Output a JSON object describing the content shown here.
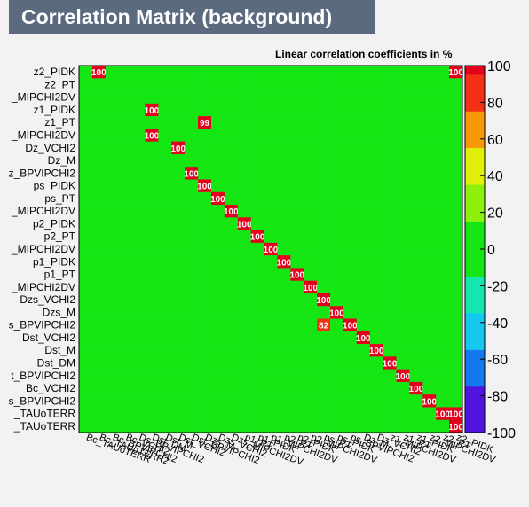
{
  "chart_data": {
    "type": "heatmap",
    "title": "Correlation Matrix (background)",
    "subtitle": "Linear correlation coefficients in %",
    "variables": [
      "Bc_TAUoTERR",
      "Bc_TAUoTERR2",
      "Bc_BPVIPCHI2",
      "Bc_VCHI2",
      "Ds_BPVIPCHI2",
      "Dst_DM",
      "Dst_M",
      "Dst_VCHI2",
      "Dst_BPVIPCHI2",
      "Dzs_M",
      "Dzs_VCHI2",
      "Dzs_MIPCHI2DV",
      "p1_PT",
      "p1_PIDK",
      "p1_MIPCHI2DV",
      "p2_PT",
      "p2_PIDK",
      "p2_MIPCHI2DV",
      "ps_PT",
      "ps_PIDK",
      "ps_BPVIPCHI2",
      "Dz_M",
      "Dz_VCHI2",
      "z1_MIPCHI2DV",
      "z1_PT",
      "z1_PIDK",
      "z2_MIPCHI2DV",
      "z2_PT",
      "z2_PIDK"
    ],
    "row_labels_visible": [
      "z2_PIDK",
      "z2_PT",
      "_MIPCHI2DV",
      "z1_PIDK",
      "z1_PT",
      "_MIPCHI2DV",
      "Dz_VCHI2",
      "Dz_M",
      "z_BPVIPCHI2",
      "ps_PIDK",
      "ps_PT",
      "_MIPCHI2DV",
      "p2_PIDK",
      "p2_PT",
      "_MIPCHI2DV",
      "p1_PIDK",
      "p1_PT",
      "_MIPCHI2DV",
      "Dzs_VCHI2",
      "Dzs_M",
      "s_BPVIPCHI2",
      "Dst_VCHI2",
      "Dst_M",
      "Dst_DM",
      "t_BPVIPCHI2",
      "Bc_VCHI2",
      "s_BPVIPCHI2",
      "_TAUoTERR",
      "_TAUoTERR"
    ],
    "col_labels_visible": [
      "Bc_TAUoTERR",
      "Bc_TAUoTERR2",
      "Bc_BPVIPCHI2",
      "Bc_VCHI2",
      "Ds_BPVIPCHI2",
      "Dst_DM",
      "Dst_M",
      "Dst_VCHI2",
      "Dst_BPVIPCHI2",
      "Dzs_M",
      "Dzs_VCHI2",
      "Dzs_MIPCHI2DV",
      "p1_PT",
      "p1_PIDK",
      "p1_MIPCHI2DV",
      "p2_PT",
      "p2_PIDK",
      "p2_MIPCHI2DV",
      "ps_PT",
      "ps_PIDK",
      "ps_BPVIPCHI2",
      "Dz_M",
      "Dz_VCHI2",
      "z1_MIPCHI2DV",
      "z1_PT",
      "z1_PIDK",
      "z2_MIPCHI2DV",
      "z2_PT",
      "z2_PIDK"
    ],
    "highlights": [
      {
        "row": 0,
        "col": 1,
        "value": 100
      },
      {
        "row": 0,
        "col": 28,
        "value": 100
      },
      {
        "row": 3,
        "col": 5,
        "value": 100
      },
      {
        "row": 4,
        "col": 9,
        "value": 99
      },
      {
        "row": 5,
        "col": 5,
        "value": 100
      },
      {
        "row": 6,
        "col": 7,
        "value": 100
      },
      {
        "row": 8,
        "col": 8,
        "value": 100
      },
      {
        "row": 9,
        "col": 9,
        "value": 100
      },
      {
        "row": 10,
        "col": 10,
        "value": 100
      },
      {
        "row": 11,
        "col": 11,
        "value": 100
      },
      {
        "row": 12,
        "col": 12,
        "value": 100
      },
      {
        "row": 13,
        "col": 13,
        "value": 100
      },
      {
        "row": 14,
        "col": 14,
        "value": 100
      },
      {
        "row": 15,
        "col": 15,
        "value": 100
      },
      {
        "row": 16,
        "col": 16,
        "value": 100
      },
      {
        "row": 17,
        "col": 17,
        "value": 100
      },
      {
        "row": 18,
        "col": 18,
        "value": 100
      },
      {
        "row": 19,
        "col": 19,
        "value": 100
      },
      {
        "row": 20,
        "col": 20,
        "value": 100
      },
      {
        "row": 21,
        "col": 21,
        "value": 100
      },
      {
        "row": 22,
        "col": 22,
        "value": 100
      },
      {
        "row": 23,
        "col": 23,
        "value": 100
      },
      {
        "row": 24,
        "col": 24,
        "value": 100
      },
      {
        "row": 25,
        "col": 25,
        "value": 100
      },
      {
        "row": 26,
        "col": 26,
        "value": 100
      },
      {
        "row": 27,
        "col": 27,
        "value": 100
      },
      {
        "row": 28,
        "col": 28,
        "value": 100
      },
      {
        "row": 20,
        "col": 18,
        "value": 82
      },
      {
        "row": 27,
        "col": 28,
        "value": 100
      }
    ],
    "colorbar": {
      "min": -100,
      "max": 100,
      "ticks": [
        100,
        80,
        60,
        40,
        20,
        0,
        -20,
        -40,
        -60,
        -80,
        -100
      ]
    }
  }
}
